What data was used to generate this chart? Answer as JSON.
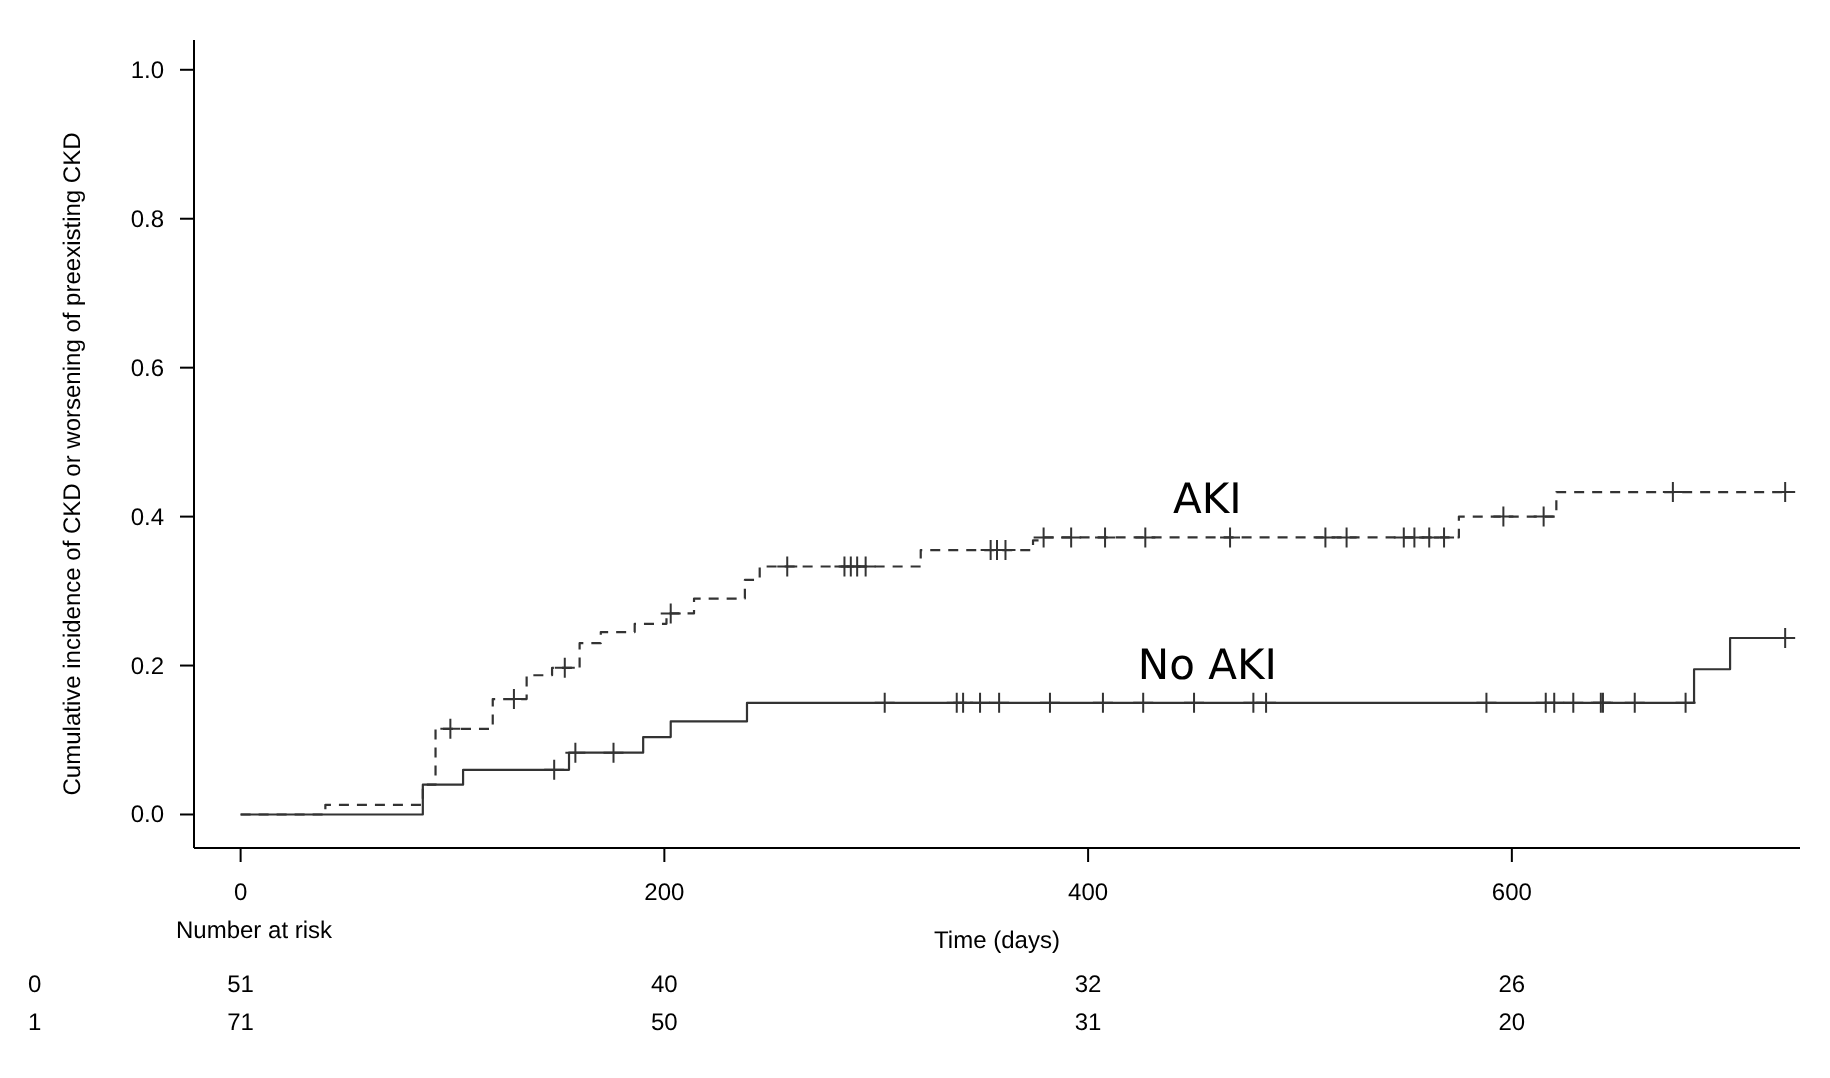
{
  "chart_data": {
    "type": "step",
    "xlabel": "Time (days)",
    "ylabel": "Cumulative incidence of CKD or worsening of preexisting CKD",
    "xlim": [
      -22,
      736
    ],
    "ylim": [
      -0.045,
      1.04
    ],
    "xticks": [
      0,
      200,
      400,
      600
    ],
    "yticks": [
      {
        "value": 0,
        "label": "0.0"
      },
      {
        "value": 0.2,
        "label": "0.2"
      },
      {
        "value": 0.4,
        "label": "0.4"
      },
      {
        "value": 0.6,
        "label": "0.6"
      },
      {
        "value": 0.8,
        "label": "0.8"
      },
      {
        "value": 1,
        "label": "1.0"
      }
    ],
    "grid": false,
    "series": [
      {
        "name": "AKI",
        "color": "#333333",
        "line_style": "dashed",
        "x": [
          0,
          40,
          86,
          92,
          119,
          135,
          147,
          160,
          170,
          186,
          201,
          214,
          238,
          245,
          321,
          374,
          377,
          575,
          621,
          729
        ],
        "values": [
          0,
          0.013,
          0.04,
          0.115,
          0.155,
          0.187,
          0.197,
          0.23,
          0.245,
          0.256,
          0.27,
          0.29,
          0.315,
          0.333,
          0.355,
          0.368,
          0.372,
          0.4,
          0.433,
          0.433
        ]
      },
      {
        "name": "No AKI",
        "color": "#333333",
        "line_style": "solid",
        "x": [
          0,
          86,
          105,
          155,
          190,
          203,
          239,
          686,
          703,
          729
        ],
        "values": [
          0,
          0.04,
          0.06,
          0.083,
          0.104,
          0.125,
          0.15,
          0.195,
          0.237,
          0.237
        ]
      },
      {
        "type": "scatter",
        "marker": "cross",
        "color": "#333333",
        "x": [
          99,
          129,
          153,
          203,
          258,
          285,
          288,
          291,
          295,
          354,
          357,
          361,
          379,
          392,
          408,
          427,
          467,
          512,
          522,
          549,
          554,
          561,
          568,
          596,
          615,
          676,
          729
        ],
        "values": [
          0.115,
          0.155,
          0.197,
          0.27,
          0.333,
          0.333,
          0.333,
          0.333,
          0.333,
          0.355,
          0.355,
          0.355,
          0.372,
          0.372,
          0.372,
          0.372,
          0.372,
          0.372,
          0.372,
          0.372,
          0.372,
          0.372,
          0.372,
          0.4,
          0.4,
          0.433,
          0.433
        ]
      },
      {
        "type": "scatter",
        "marker": "cross",
        "color": "#333333",
        "x": [
          148,
          158,
          176,
          304,
          338,
          341,
          349,
          358,
          382,
          407,
          426,
          450,
          478,
          484,
          588,
          616,
          620,
          629,
          642,
          643,
          658,
          682,
          729
        ],
        "values": [
          0.06,
          0.083,
          0.083,
          0.15,
          0.15,
          0.15,
          0.15,
          0.15,
          0.15,
          0.15,
          0.15,
          0.15,
          0.15,
          0.15,
          0.15,
          0.15,
          0.15,
          0.15,
          0.15,
          0.15,
          0.15,
          0.15,
          0.237
        ]
      }
    ],
    "annotations": [
      "Number at risk",
      "0",
      "51",
      "40",
      "32",
      "26",
      "1",
      "71",
      "50",
      "31",
      "20"
    ]
  }
}
